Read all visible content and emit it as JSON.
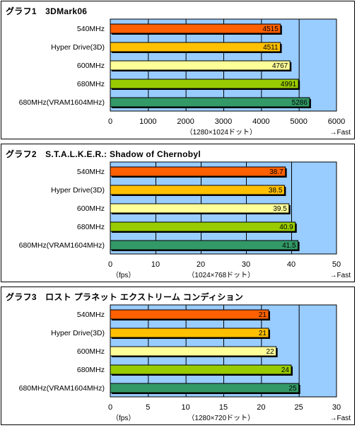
{
  "charts": [
    {
      "title": "グラフ1　3DMark06"
    },
    {
      "title": "グラフ2　S.T.A.L.K.E.R.: Shadow of Chernobyl"
    },
    {
      "title": "グラフ3　ロスト プラネット エクストリーム コンディション"
    }
  ],
  "chart_data": [
    {
      "type": "bar",
      "orientation": "horizontal",
      "title": "グラフ1　3DMark06",
      "categories": [
        "540MHz",
        "Hyper Drive(3D)",
        "600MHz",
        "680MHz",
        "680MHz(VRAM1604MHz)"
      ],
      "values": [
        4515,
        4511,
        4767,
        4991,
        5286
      ],
      "bar_colors": [
        "#ff6000",
        "#ffc000",
        "#ffff99",
        "#99cc00",
        "#339966"
      ],
      "xlim": [
        0,
        6000
      ],
      "ticks": [
        0,
        1000,
        2000,
        3000,
        4000,
        5000,
        6000
      ],
      "unit_left": "",
      "unit_center": "（1280×1024ドット）",
      "unit_right": "→Fast",
      "plot_bg": "#99ccff",
      "grid": true
    },
    {
      "type": "bar",
      "orientation": "horizontal",
      "title": "グラフ2　S.T.A.L.K.E.R.: Shadow of Chernobyl",
      "categories": [
        "540MHz",
        "Hyper Drive(3D)",
        "600MHz",
        "680MHz",
        "680MHz(VRAM1604MHz)"
      ],
      "values": [
        38.7,
        38.5,
        39.5,
        40.9,
        41.5
      ],
      "bar_colors": [
        "#ff6000",
        "#ffc000",
        "#ffff99",
        "#99cc00",
        "#339966"
      ],
      "xlim": [
        0,
        50
      ],
      "ticks": [
        0,
        10,
        20,
        30,
        40,
        50
      ],
      "unit_left": "（fps）",
      "unit_center": "（1024×768ドット）",
      "unit_right": "→Fast",
      "plot_bg": "#99ccff",
      "grid": true
    },
    {
      "type": "bar",
      "orientation": "horizontal",
      "title": "グラフ3　ロスト プラネット エクストリーム コンディション",
      "categories": [
        "540MHz",
        "Hyper Drive(3D)",
        "600MHz",
        "680MHz",
        "680MHz(VRAM1604MHz)"
      ],
      "values": [
        21,
        21,
        22,
        24,
        25
      ],
      "bar_colors": [
        "#ff6000",
        "#ffc000",
        "#ffff99",
        "#99cc00",
        "#339966"
      ],
      "xlim": [
        0,
        30
      ],
      "ticks": [
        0,
        5,
        10,
        15,
        20,
        25,
        30
      ],
      "unit_left": "（fps）",
      "unit_center": "（1280×720ドット）",
      "unit_right": "→Fast",
      "plot_bg": "#99ccff",
      "grid": true
    }
  ]
}
